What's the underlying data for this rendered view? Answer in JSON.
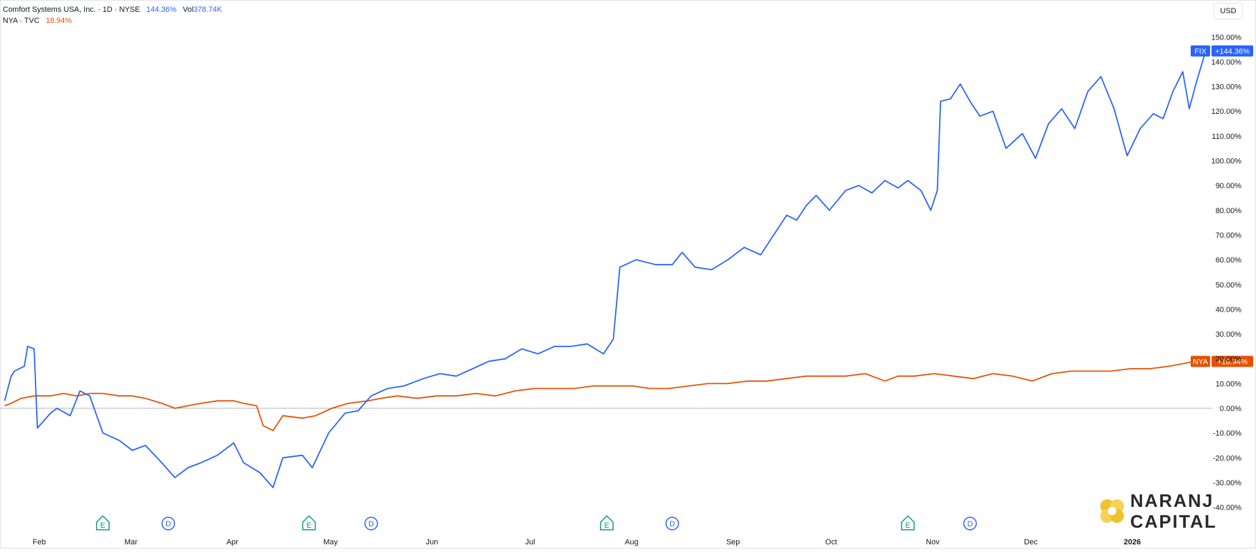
{
  "legend": {
    "main_title": "Comfort Systems USA, Inc. · 1D · NYSE",
    "main_change": "144.36%",
    "vol_label": "Vol",
    "vol_value": "378.74K",
    "compare_title": "NYA · TVC",
    "compare_change": "18.94%"
  },
  "currency_button": "USD",
  "logo": {
    "line1": "NARANJ",
    "line2": "CAPITAL"
  },
  "chart_data": {
    "type": "line",
    "y_unit": "%",
    "ylim": [
      -40,
      150
    ],
    "x_tick_labels": [
      "Feb",
      "Mar",
      "Apr",
      "May",
      "Jun",
      "Jul",
      "Aug",
      "Sep",
      "Oct",
      "Nov",
      "Dec",
      "2026"
    ],
    "y_tick_labels": [
      "150.00%",
      "140.00%",
      "130.00%",
      "120.00%",
      "110.00%",
      "100.00%",
      "90.00%",
      "80.00%",
      "70.00%",
      "60.00%",
      "50.00%",
      "40.00%",
      "30.00%",
      "20.00%",
      "10.00%",
      "0.00%",
      "-10.00%",
      "-20.00%",
      "-30.00%",
      "-40.00%"
    ],
    "x_range": [
      "2025-01-20",
      "2026-01-25"
    ],
    "colors": {
      "fix": "#2962ff",
      "nya": "#e65100",
      "zero_line": "#b2b5be",
      "badge_text": "#ffffff",
      "event_e": "#089981",
      "event_d": "#2962ff"
    },
    "series": [
      {
        "name": "FIX",
        "last_label": "+144.36%",
        "points": [
          [
            "2025-01-21",
            3
          ],
          [
            "2025-01-23",
            13
          ],
          [
            "2025-01-24",
            15
          ],
          [
            "2025-01-27",
            17
          ],
          [
            "2025-01-28",
            25
          ],
          [
            "2025-01-30",
            24
          ],
          [
            "2025-01-31",
            -8
          ],
          [
            "2025-02-04",
            -2
          ],
          [
            "2025-02-06",
            0
          ],
          [
            "2025-02-10",
            -3
          ],
          [
            "2025-02-13",
            7
          ],
          [
            "2025-02-16",
            5
          ],
          [
            "2025-02-20",
            -10
          ],
          [
            "2025-02-25",
            -13
          ],
          [
            "2025-03-01",
            -17
          ],
          [
            "2025-03-05",
            -15
          ],
          [
            "2025-03-10",
            -22
          ],
          [
            "2025-03-14",
            -28
          ],
          [
            "2025-03-18",
            -24
          ],
          [
            "2025-03-22",
            -22
          ],
          [
            "2025-03-27",
            -19
          ],
          [
            "2025-04-01",
            -14
          ],
          [
            "2025-04-04",
            -22
          ],
          [
            "2025-04-09",
            -26
          ],
          [
            "2025-04-13",
            -32
          ],
          [
            "2025-04-16",
            -20
          ],
          [
            "2025-04-22",
            -19
          ],
          [
            "2025-04-25",
            -24
          ],
          [
            "2025-04-30",
            -10
          ],
          [
            "2025-05-05",
            -2
          ],
          [
            "2025-05-09",
            -1
          ],
          [
            "2025-05-13",
            5
          ],
          [
            "2025-05-18",
            8
          ],
          [
            "2025-05-23",
            9
          ],
          [
            "2025-05-29",
            12
          ],
          [
            "2025-06-03",
            14
          ],
          [
            "2025-06-08",
            13
          ],
          [
            "2025-06-13",
            16
          ],
          [
            "2025-06-18",
            19
          ],
          [
            "2025-06-23",
            20
          ],
          [
            "2025-06-28",
            24
          ],
          [
            "2025-07-03",
            22
          ],
          [
            "2025-07-08",
            25
          ],
          [
            "2025-07-13",
            25
          ],
          [
            "2025-07-18",
            26
          ],
          [
            "2025-07-23",
            22
          ],
          [
            "2025-07-26",
            28
          ],
          [
            "2025-07-28",
            57
          ],
          [
            "2025-08-02",
            60
          ],
          [
            "2025-08-08",
            58
          ],
          [
            "2025-08-13",
            58
          ],
          [
            "2025-08-16",
            63
          ],
          [
            "2025-08-20",
            57
          ],
          [
            "2025-08-25",
            56
          ],
          [
            "2025-08-30",
            60
          ],
          [
            "2025-09-04",
            65
          ],
          [
            "2025-09-09",
            62
          ],
          [
            "2025-09-14",
            72
          ],
          [
            "2025-09-17",
            78
          ],
          [
            "2025-09-20",
            76
          ],
          [
            "2025-09-23",
            82
          ],
          [
            "2025-09-26",
            86
          ],
          [
            "2025-09-30",
            80
          ],
          [
            "2025-10-05",
            88
          ],
          [
            "2025-10-09",
            90
          ],
          [
            "2025-10-13",
            87
          ],
          [
            "2025-10-17",
            92
          ],
          [
            "2025-10-21",
            89
          ],
          [
            "2025-10-24",
            92
          ],
          [
            "2025-10-28",
            88
          ],
          [
            "2025-10-31",
            80
          ],
          [
            "2025-11-02",
            88
          ],
          [
            "2025-11-03",
            124
          ],
          [
            "2025-11-06",
            125
          ],
          [
            "2025-11-09",
            131
          ],
          [
            "2025-11-12",
            124
          ],
          [
            "2025-11-15",
            118
          ],
          [
            "2025-11-19",
            120
          ],
          [
            "2025-11-23",
            105
          ],
          [
            "2025-11-28",
            111
          ],
          [
            "2025-12-02",
            101
          ],
          [
            "2025-12-06",
            115
          ],
          [
            "2025-12-10",
            121
          ],
          [
            "2025-12-14",
            113
          ],
          [
            "2025-12-18",
            128
          ],
          [
            "2025-12-22",
            134
          ],
          [
            "2025-12-26",
            121
          ],
          [
            "2025-12-30",
            102
          ],
          [
            "2026-01-03",
            113
          ],
          [
            "2026-01-07",
            119
          ],
          [
            "2026-01-10",
            117
          ],
          [
            "2026-01-13",
            128
          ],
          [
            "2026-01-16",
            136
          ],
          [
            "2026-01-18",
            121
          ],
          [
            "2026-01-20",
            131
          ],
          [
            "2026-01-23",
            144.36
          ]
        ]
      },
      {
        "name": "NYA",
        "last_label": "+18.94%",
        "points": [
          [
            "2025-01-21",
            1
          ],
          [
            "2025-01-23",
            2
          ],
          [
            "2025-01-26",
            4
          ],
          [
            "2025-01-30",
            5
          ],
          [
            "2025-02-04",
            5
          ],
          [
            "2025-02-08",
            6
          ],
          [
            "2025-02-12",
            5
          ],
          [
            "2025-02-16",
            6
          ],
          [
            "2025-02-20",
            6
          ],
          [
            "2025-02-25",
            5
          ],
          [
            "2025-03-01",
            5
          ],
          [
            "2025-03-05",
            4
          ],
          [
            "2025-03-10",
            2
          ],
          [
            "2025-03-14",
            0
          ],
          [
            "2025-03-18",
            1
          ],
          [
            "2025-03-22",
            2
          ],
          [
            "2025-03-27",
            3
          ],
          [
            "2025-04-01",
            3
          ],
          [
            "2025-04-04",
            2
          ],
          [
            "2025-04-08",
            1
          ],
          [
            "2025-04-10",
            -7
          ],
          [
            "2025-04-13",
            -9
          ],
          [
            "2025-04-16",
            -3
          ],
          [
            "2025-04-22",
            -4
          ],
          [
            "2025-04-26",
            -3
          ],
          [
            "2025-05-01",
            0
          ],
          [
            "2025-05-06",
            2
          ],
          [
            "2025-05-12",
            3
          ],
          [
            "2025-05-16",
            4
          ],
          [
            "2025-05-21",
            5
          ],
          [
            "2025-05-27",
            4
          ],
          [
            "2025-06-02",
            5
          ],
          [
            "2025-06-08",
            5
          ],
          [
            "2025-06-14",
            6
          ],
          [
            "2025-06-20",
            5
          ],
          [
            "2025-06-26",
            7
          ],
          [
            "2025-07-02",
            8
          ],
          [
            "2025-07-08",
            8
          ],
          [
            "2025-07-14",
            8
          ],
          [
            "2025-07-20",
            9
          ],
          [
            "2025-07-26",
            9
          ],
          [
            "2025-08-01",
            9
          ],
          [
            "2025-08-06",
            8
          ],
          [
            "2025-08-12",
            8
          ],
          [
            "2025-08-18",
            9
          ],
          [
            "2025-08-24",
            10
          ],
          [
            "2025-08-30",
            10
          ],
          [
            "2025-09-05",
            11
          ],
          [
            "2025-09-11",
            11
          ],
          [
            "2025-09-17",
            12
          ],
          [
            "2025-09-23",
            13
          ],
          [
            "2025-09-29",
            13
          ],
          [
            "2025-10-05",
            13
          ],
          [
            "2025-10-11",
            14
          ],
          [
            "2025-10-15",
            12
          ],
          [
            "2025-10-17",
            11
          ],
          [
            "2025-10-21",
            13
          ],
          [
            "2025-10-26",
            13
          ],
          [
            "2025-11-01",
            14
          ],
          [
            "2025-11-07",
            13
          ],
          [
            "2025-11-13",
            12
          ],
          [
            "2025-11-19",
            14
          ],
          [
            "2025-11-25",
            13
          ],
          [
            "2025-12-01",
            11
          ],
          [
            "2025-12-07",
            14
          ],
          [
            "2025-12-13",
            15
          ],
          [
            "2025-12-19",
            15
          ],
          [
            "2025-12-25",
            15
          ],
          [
            "2025-12-31",
            16
          ],
          [
            "2026-01-06",
            16
          ],
          [
            "2026-01-12",
            17
          ],
          [
            "2026-01-16",
            18
          ],
          [
            "2026-01-20",
            19
          ],
          [
            "2026-01-23",
            18.94
          ]
        ]
      }
    ],
    "events": [
      {
        "type": "E",
        "date": "2025-02-20"
      },
      {
        "type": "D",
        "date": "2025-03-12"
      },
      {
        "type": "E",
        "date": "2025-04-24"
      },
      {
        "type": "D",
        "date": "2025-05-13"
      },
      {
        "type": "E",
        "date": "2025-07-24"
      },
      {
        "type": "D",
        "date": "2025-08-13"
      },
      {
        "type": "E",
        "date": "2025-10-24"
      },
      {
        "type": "D",
        "date": "2025-11-12"
      }
    ]
  }
}
